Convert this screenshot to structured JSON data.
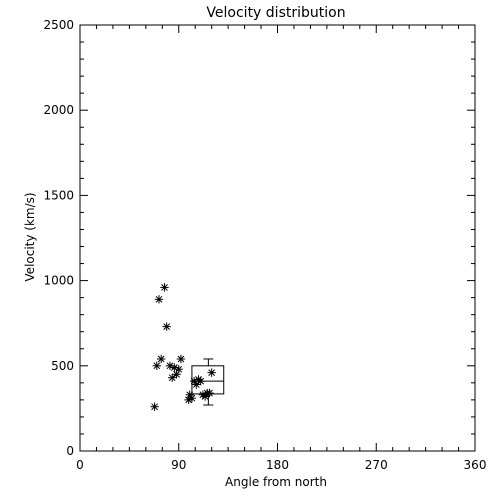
{
  "chart_data": {
    "type": "scatter",
    "title": "Velocity distribution",
    "xlabel": "Angle from north",
    "ylabel": "Velocity (km/s)",
    "xlim": [
      0,
      360
    ],
    "ylim": [
      0,
      2500
    ],
    "xticks": [
      "0",
      "90",
      "180",
      "270",
      "360"
    ],
    "yticks": [
      "0",
      "500",
      "1000",
      "1500",
      "2000",
      "2500"
    ],
    "marker": "asterisk",
    "grid": false,
    "legend": "none",
    "colors": {
      "background": "#ffffff",
      "foreground": "#000000"
    },
    "points": [
      {
        "x": 68,
        "y": 260
      },
      {
        "x": 70,
        "y": 500
      },
      {
        "x": 72,
        "y": 890
      },
      {
        "x": 74,
        "y": 540
      },
      {
        "x": 77,
        "y": 960
      },
      {
        "x": 79,
        "y": 730
      },
      {
        "x": 82,
        "y": 500
      },
      {
        "x": 84,
        "y": 430
      },
      {
        "x": 86,
        "y": 490
      },
      {
        "x": 88,
        "y": 450
      },
      {
        "x": 90,
        "y": 480
      },
      {
        "x": 92,
        "y": 540
      },
      {
        "x": 99,
        "y": 300
      },
      {
        "x": 100,
        "y": 330
      },
      {
        "x": 102,
        "y": 310
      },
      {
        "x": 104,
        "y": 410
      },
      {
        "x": 106,
        "y": 390
      },
      {
        "x": 108,
        "y": 420
      },
      {
        "x": 110,
        "y": 410
      },
      {
        "x": 112,
        "y": 330
      },
      {
        "x": 114,
        "y": 320
      },
      {
        "x": 116,
        "y": 340
      },
      {
        "x": 118,
        "y": 340
      },
      {
        "x": 120,
        "y": 460
      }
    ],
    "boxplot": {
      "x_left": 102,
      "x_right": 131,
      "whisker_x": 117,
      "min": 270,
      "q1": 335,
      "median": 410,
      "q3": 500,
      "max": 540
    }
  }
}
